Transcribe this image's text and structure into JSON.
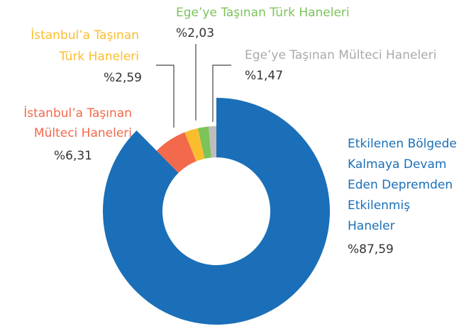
{
  "chart_data": {
    "type": "donut",
    "categories": [
      [
        "Etkilenen Bölgede",
        "Kalmaya Devam",
        "Eden Depremden",
        "Etkilenmiş",
        "Haneler"
      ],
      [
        "İstanbul’a Taşınan",
        "Mülteci Haneleri"
      ],
      [
        "İstanbul’a Taşınan",
        "Türk Haneleri"
      ],
      [
        "Ege’ye Taşınan Türk Haneleri"
      ],
      [
        "Ege’ye Taşınan Mülteci Haneleri"
      ]
    ],
    "values": [
      87.59,
      6.31,
      2.59,
      2.03,
      1.47
    ],
    "value_labels": [
      "%87,59",
      "%6,31",
      "%2,59",
      "%2,03",
      "%1,47"
    ],
    "colors": [
      "#1a6fb8",
      "#f2694b",
      "#fbbd2e",
      "#7cc35a",
      "#bdbdbd"
    ],
    "label_colors": [
      "#1a6fb8",
      "#f2694b",
      "#fbbd2e",
      "#7cc35a",
      "#aaaaaa"
    ]
  }
}
